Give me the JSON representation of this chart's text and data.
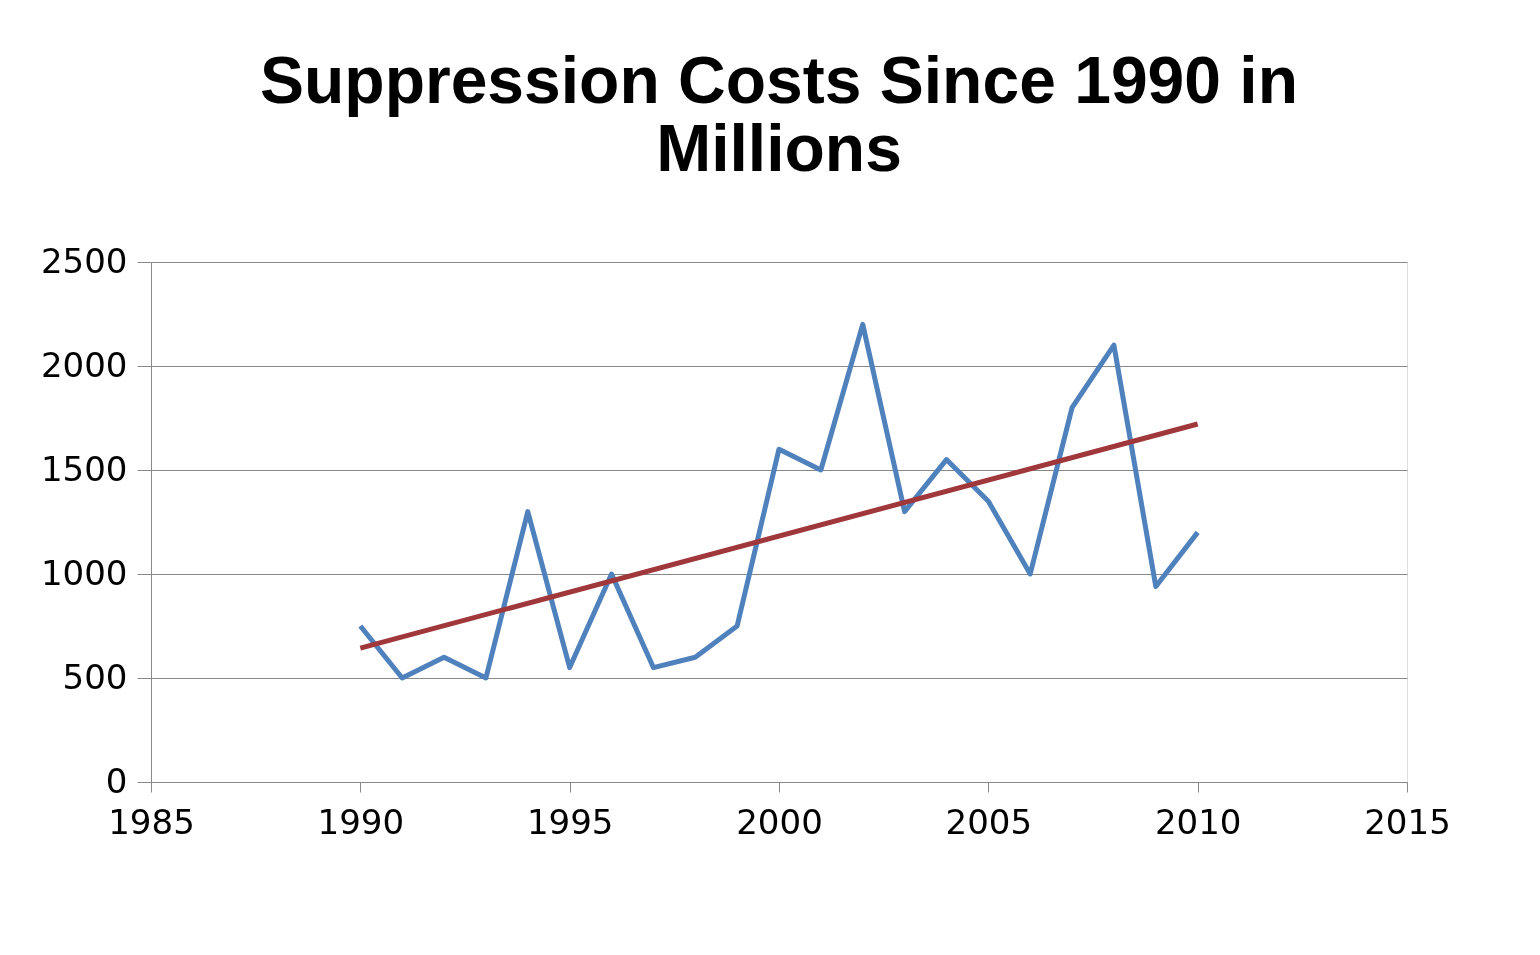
{
  "chart_data": {
    "type": "line",
    "title": "Suppression Costs Since 1990 in Millions",
    "x": [
      1990,
      1991,
      1992,
      1993,
      1994,
      1995,
      1996,
      1997,
      1998,
      1999,
      2000,
      2001,
      2002,
      2003,
      2004,
      2005,
      2006,
      2007,
      2008,
      2009,
      2010
    ],
    "series": [
      {
        "color": "#4f81bd",
        "values": [
          750,
          500,
          600,
          500,
          1300,
          550,
          1000,
          550,
          600,
          750,
          1600,
          1500,
          2200,
          1300,
          1550,
          1350,
          1000,
          1800,
          2100,
          940,
          1200
        ]
      },
      {
        "type": "line",
        "color": "#a0373a",
        "x": [
          1990,
          2010
        ],
        "values": [
          644,
          1721
        ]
      }
    ],
    "xlim": [
      1985,
      2015
    ],
    "xticks": [
      1985,
      1990,
      1995,
      2000,
      2005,
      2010,
      2015
    ],
    "ylim": [
      0,
      2500
    ],
    "yticks": [
      0,
      500,
      1000,
      1500,
      2000,
      2500
    ],
    "grid": "y",
    "legend": false,
    "marker": "none",
    "line_style": "solid"
  }
}
